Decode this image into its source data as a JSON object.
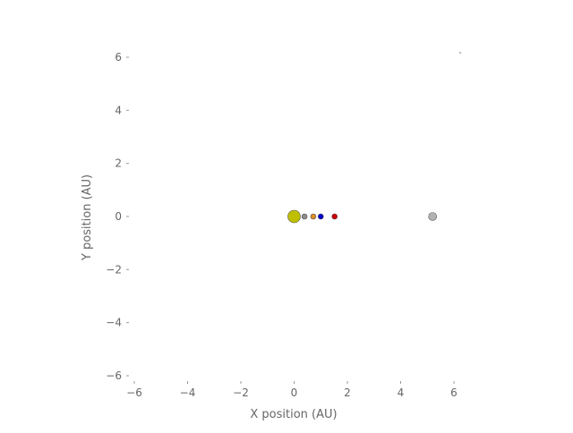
{
  "chart_data": {
    "type": "scatter",
    "title": "",
    "xlabel": "X position (AU)",
    "ylabel": "Y position (AU)",
    "xlim": [
      -6,
      6
    ],
    "ylim": [
      -6,
      6
    ],
    "x_ticks": [
      -6,
      -4,
      -2,
      0,
      2,
      4,
      6
    ],
    "y_ticks": [
      -6,
      -4,
      -2,
      0,
      2,
      4,
      6
    ],
    "x_tick_labels": [
      "−6",
      "−4",
      "−2",
      "0",
      "2",
      "4",
      "6"
    ],
    "y_tick_labels": [
      "−6",
      "−4",
      "−2",
      "0",
      "2",
      "4",
      "6"
    ],
    "grid": false,
    "points": [
      {
        "x": 0.0,
        "y": 0,
        "color": "#bfbf00",
        "size": 13
      },
      {
        "x": 0.39,
        "y": 0,
        "color": "#8c8c8c",
        "size": 5
      },
      {
        "x": 0.72,
        "y": 0,
        "color": "#d98c26",
        "size": 5
      },
      {
        "x": 1.0,
        "y": 0,
        "color": "#0000cc",
        "size": 5
      },
      {
        "x": 1.52,
        "y": 0,
        "color": "#cc0000",
        "size": 5
      },
      {
        "x": 5.2,
        "y": 0,
        "color": "#b3b3b3",
        "size": 8
      }
    ],
    "colors": {
      "axis_text": "#666666",
      "tick_mark": "#999999"
    }
  }
}
